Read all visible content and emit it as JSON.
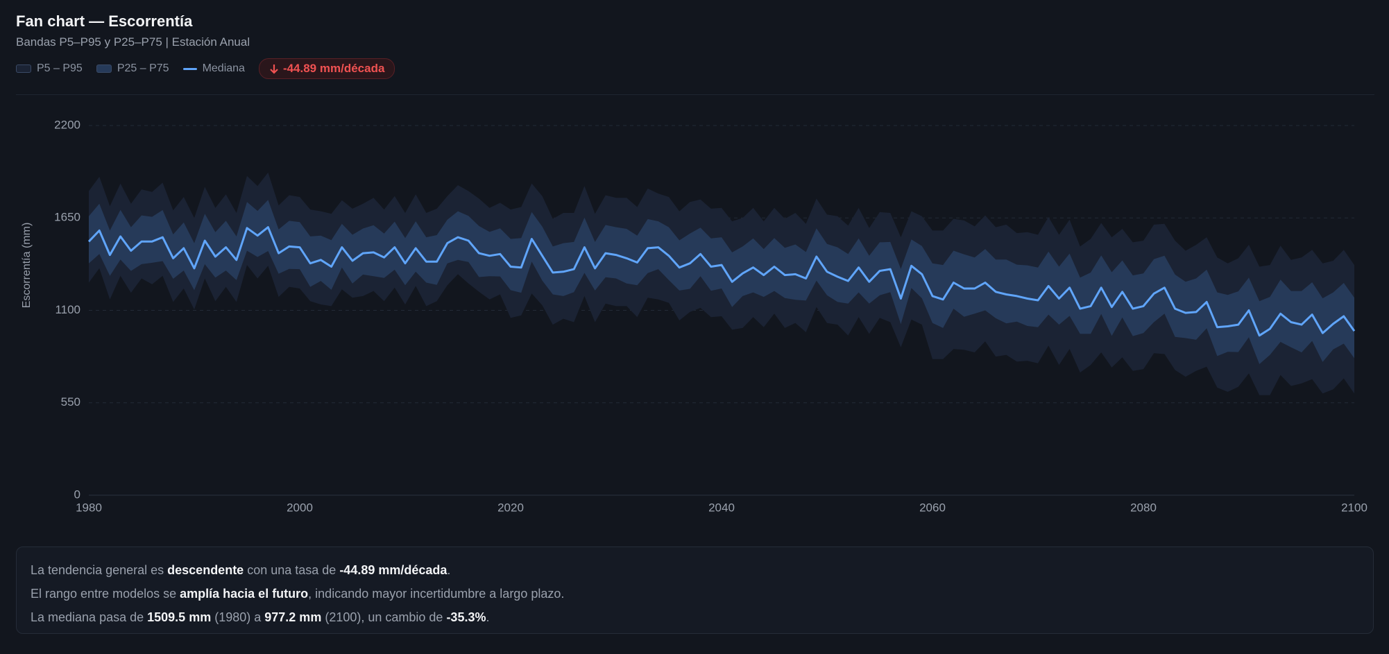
{
  "header": {
    "title": "Fan chart — Escorrentía",
    "subtitle": "Bandas P5–P95 y P25–P75 | Estación Anual"
  },
  "badge": {
    "label": "-44.89 mm/década"
  },
  "chart_data": {
    "type": "fan",
    "y_label": "Escorrentía (mm)",
    "x": [
      1980,
      1981,
      1982,
      1983,
      1984,
      1985,
      1986,
      1987,
      1988,
      1989,
      1990,
      1991,
      1992,
      1993,
      1994,
      1995,
      1996,
      1997,
      1998,
      1999,
      2000,
      2001,
      2002,
      2003,
      2004,
      2005,
      2006,
      2007,
      2008,
      2009,
      2010,
      2011,
      2012,
      2013,
      2014,
      2015,
      2016,
      2017,
      2018,
      2019,
      2020,
      2021,
      2022,
      2023,
      2024,
      2025,
      2026,
      2027,
      2028,
      2029,
      2030,
      2031,
      2032,
      2033,
      2034,
      2035,
      2036,
      2037,
      2038,
      2039,
      2040,
      2041,
      2042,
      2043,
      2044,
      2045,
      2046,
      2047,
      2048,
      2049,
      2050,
      2051,
      2052,
      2053,
      2054,
      2055,
      2056,
      2057,
      2058,
      2059,
      2060,
      2061,
      2062,
      2063,
      2064,
      2065,
      2066,
      2067,
      2068,
      2069,
      2070,
      2071,
      2072,
      2073,
      2074,
      2075,
      2076,
      2077,
      2078,
      2079,
      2080,
      2081,
      2082,
      2083,
      2084,
      2085,
      2086,
      2087,
      2088,
      2089,
      2090,
      2091,
      2092,
      2093,
      2094,
      2095,
      2096,
      2097,
      2098,
      2099,
      2100
    ],
    "bands": [
      {
        "name": "P5 – P95",
        "color": "#1b2334",
        "lower": [
          1265,
          1350,
          1165,
          1305,
          1205,
          1290,
          1255,
          1305,
          1150,
          1230,
          1105,
          1290,
          1155,
          1240,
          1150,
          1370,
          1290,
          1365,
          1180,
          1240,
          1230,
          1155,
          1135,
          1125,
          1225,
          1175,
          1185,
          1215,
          1155,
          1235,
          1135,
          1245,
          1125,
          1155,
          1250,
          1315,
          1260,
          1210,
          1165,
          1195,
          1055,
          1070,
          1200,
          1130,
          1015,
          1050,
          1030,
          1185,
          1030,
          1140,
          1125,
          1125,
          1060,
          1175,
          1165,
          1145,
          1040,
          1090,
          1115,
          1060,
          1065,
          985,
          995,
          1060,
          1000,
          1080,
          995,
          1025,
          970,
          1120,
          1025,
          1015,
          950,
          1060,
          960,
          1055,
          1030,
          880,
          1045,
          1015,
          810,
          810,
          870,
          865,
          850,
          915,
          825,
          835,
          795,
          800,
          785,
          890,
          775,
          870,
          730,
          775,
          850,
          760,
          820,
          740,
          750,
          845,
          840,
          745,
          705,
          740,
          765,
          640,
          615,
          645,
          725,
          595,
          595,
          715,
          650,
          665,
          690,
          605,
          630,
          695,
          605
        ],
        "upper": [
          1810,
          1895,
          1720,
          1855,
          1735,
          1820,
          1805,
          1860,
          1695,
          1775,
          1650,
          1835,
          1710,
          1790,
          1680,
          1900,
          1840,
          1920,
          1725,
          1785,
          1775,
          1700,
          1690,
          1675,
          1755,
          1705,
          1735,
          1770,
          1700,
          1780,
          1680,
          1790,
          1680,
          1705,
          1780,
          1845,
          1810,
          1765,
          1710,
          1740,
          1700,
          1715,
          1855,
          1780,
          1645,
          1680,
          1680,
          1840,
          1675,
          1785,
          1770,
          1770,
          1715,
          1825,
          1795,
          1775,
          1690,
          1745,
          1760,
          1705,
          1710,
          1630,
          1650,
          1710,
          1630,
          1710,
          1645,
          1680,
          1615,
          1765,
          1670,
          1660,
          1605,
          1710,
          1590,
          1685,
          1680,
          1535,
          1690,
          1660,
          1575,
          1575,
          1645,
          1635,
          1600,
          1665,
          1595,
          1610,
          1560,
          1565,
          1550,
          1655,
          1550,
          1640,
          1480,
          1525,
          1620,
          1535,
          1585,
          1505,
          1515,
          1610,
          1615,
          1515,
          1455,
          1490,
          1535,
          1415,
          1380,
          1410,
          1490,
          1360,
          1370,
          1485,
          1400,
          1415,
          1460,
          1380,
          1395,
          1460,
          1370
        ]
      },
      {
        "name": "P25 – P75",
        "color": "#263a59",
        "lower": [
          1380,
          1435,
          1305,
          1402,
          1335,
          1375,
          1383,
          1393,
          1288,
          1337,
          1220,
          1375,
          1295,
          1337,
          1280,
          1455,
          1418,
          1453,
          1318,
          1347,
          1345,
          1240,
          1275,
          1222,
          1355,
          1260,
          1313,
          1303,
          1293,
          1342,
          1250,
          1330,
          1265,
          1252,
          1380,
          1400,
          1388,
          1298,
          1303,
          1302,
          1220,
          1205,
          1390,
          1277,
          1195,
          1185,
          1208,
          1323,
          1218,
          1297,
          1290,
          1260,
          1250,
          1322,
          1345,
          1280,
          1218,
          1228,
          1303,
          1217,
          1230,
          1120,
          1185,
          1207,
          1180,
          1215,
          1173,
          1163,
          1158,
          1277,
          1190,
          1150,
          1140,
          1207,
          1140,
          1190,
          1208,
          1018,
          1233,
          1172,
          1025,
          995,
          1110,
          1062,
          1080,
          1100,
          1053,
          1023,
          1033,
          1007,
          1000,
          1075,
          1015,
          1067,
          960,
          960,
          1078,
          948,
          1058,
          947,
          965,
          1030,
          1080,
          942,
          935,
          925,
          993,
          828,
          853,
          852,
          940,
          780,
          835,
          912,
          880,
          850,
          918,
          793,
          868,
          902,
          815
        ],
        "upper": [
          1660,
          1735,
          1575,
          1698,
          1595,
          1665,
          1657,
          1697,
          1552,
          1623,
          1500,
          1675,
          1565,
          1633,
          1540,
          1745,
          1692,
          1757,
          1582,
          1633,
          1625,
          1540,
          1545,
          1518,
          1615,
          1550,
          1587,
          1607,
          1557,
          1628,
          1530,
          1630,
          1535,
          1548,
          1640,
          1690,
          1662,
          1602,
          1567,
          1588,
          1525,
          1530,
          1685,
          1598,
          1480,
          1500,
          1507,
          1652,
          1507,
          1608,
          1595,
          1585,
          1545,
          1643,
          1630,
          1595,
          1517,
          1557,
          1592,
          1528,
          1535,
          1445,
          1480,
          1528,
          1465,
          1530,
          1472,
          1492,
          1447,
          1588,
          1495,
          1475,
          1435,
          1528,
          1425,
          1505,
          1507,
          1347,
          1522,
          1483,
          1380,
          1370,
          1455,
          1433,
          1415,
          1465,
          1402,
          1402,
          1372,
          1368,
          1355,
          1450,
          1360,
          1438,
          1295,
          1325,
          1427,
          1327,
          1397,
          1308,
          1320,
          1405,
          1425,
          1313,
          1270,
          1290,
          1342,
          1207,
          1192,
          1213,
          1295,
          1155,
          1180,
          1283,
          1215,
          1215,
          1267,
          1172,
          1207,
          1263,
          1175
        ]
      }
    ],
    "series": [
      {
        "name": "Mediana",
        "color": "#60a5fa",
        "values": [
          1509.5,
          1575,
          1430,
          1540,
          1455,
          1510,
          1510,
          1535,
          1410,
          1470,
          1350,
          1515,
          1420,
          1475,
          1400,
          1590,
          1545,
          1595,
          1440,
          1480,
          1475,
          1380,
          1400,
          1360,
          1475,
          1395,
          1440,
          1445,
          1415,
          1475,
          1380,
          1470,
          1390,
          1390,
          1500,
          1535,
          1515,
          1440,
          1425,
          1435,
          1360,
          1355,
          1525,
          1425,
          1325,
          1330,
          1345,
          1475,
          1350,
          1440,
          1430,
          1410,
          1385,
          1470,
          1475,
          1425,
          1355,
          1380,
          1435,
          1360,
          1370,
          1270,
          1320,
          1355,
          1310,
          1360,
          1310,
          1315,
          1290,
          1420,
          1330,
          1300,
          1275,
          1355,
          1270,
          1335,
          1345,
          1170,
          1365,
          1315,
          1185,
          1165,
          1265,
          1230,
          1230,
          1265,
          1210,
          1195,
          1185,
          1170,
          1160,
          1245,
          1170,
          1235,
          1110,
          1125,
          1235,
          1120,
          1210,
          1110,
          1125,
          1200,
          1235,
          1110,
          1085,
          1090,
          1150,
          1000,
          1005,
          1015,
          1100,
          950,
          990,
          1080,
          1030,
          1015,
          1075,
          965,
          1020,
          1065,
          977.2
        ]
      }
    ],
    "xlim": [
      1980,
      2100
    ],
    "xticks": [
      1980,
      2000,
      2020,
      2040,
      2060,
      2080,
      2100
    ],
    "ylim": [
      0,
      2200
    ],
    "yticks": [
      0,
      550,
      1100,
      1650,
      2200
    ],
    "grid": true
  },
  "summary": [
    [
      "La tendencia general es ",
      "descendente",
      " con una tasa de ",
      "-44.89 mm/década",
      "."
    ],
    [
      "El rango entre modelos se ",
      "amplía hacia el futuro",
      ", indicando mayor incertidumbre a largo plazo."
    ],
    [
      "La mediana pasa de ",
      "1509.5 mm",
      " (1980) a ",
      "977.2 mm",
      " (2100), un cambio de ",
      "-35.3%",
      "."
    ]
  ]
}
